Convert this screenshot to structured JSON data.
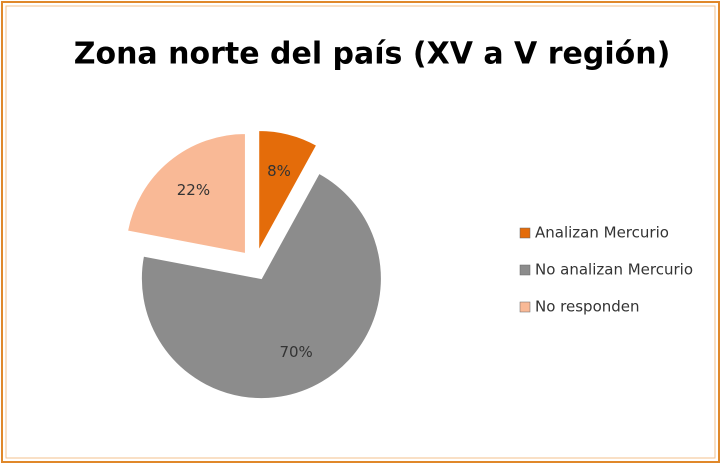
{
  "chart_data": {
    "type": "pie",
    "title": "Zona norte del país (XV a V región)",
    "categories": [
      "Analizan Mercurio",
      "No analizan Mercurio",
      "No responden"
    ],
    "values": [
      8,
      70,
      22
    ],
    "value_labels": [
      "8%",
      "70%",
      "22%"
    ],
    "colors": [
      "#e46c0a",
      "#8c8c8c",
      "#f9b996"
    ],
    "exploded": true,
    "legend": "right"
  }
}
